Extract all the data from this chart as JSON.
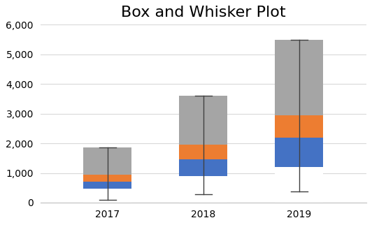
{
  "title": "Box and Whisker Plot",
  "categories": [
    "2017",
    "2018",
    "2019"
  ],
  "min_vals": [
    100,
    280,
    380
  ],
  "q1_vals": [
    480,
    900,
    1200
  ],
  "median_vals": [
    700,
    1450,
    2200
  ],
  "q3_vals": [
    950,
    1950,
    2950
  ],
  "max_vals": [
    1850,
    3600,
    5500
  ],
  "color_invisible": "#ffffff",
  "color_blue": "#4472C4",
  "color_orange": "#ED7D31",
  "color_gray": "#A5A5A5",
  "color_whisker": "#404040",
  "ylim": [
    0,
    6000
  ],
  "yticks": [
    0,
    1000,
    2000,
    3000,
    4000,
    5000,
    6000
  ],
  "ytick_labels": [
    "0",
    "1,000",
    "2,000",
    "3,000",
    "4,000",
    "5,000",
    "6,000"
  ],
  "bar_width": 0.5,
  "grid_color": "#D9D9D9",
  "background_color": "#FFFFFF",
  "title_fontsize": 16,
  "tick_fontsize": 10
}
